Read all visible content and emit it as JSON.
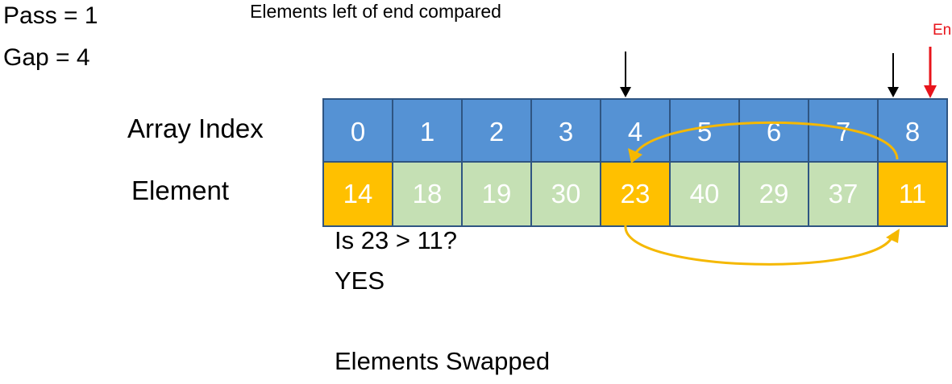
{
  "pass_label": "Pass = 1",
  "gap_label": "Gap = 4",
  "caption": "Elements left of end compared",
  "end_label": "End",
  "row_labels": {
    "index": "Array Index",
    "element": "Element"
  },
  "indices": [
    "0",
    "1",
    "2",
    "3",
    "4",
    "5",
    "6",
    "7",
    "8"
  ],
  "elements": [
    "14",
    "18",
    "19",
    "30",
    "23",
    "40",
    "29",
    "37",
    "11"
  ],
  "highlighted_indices": [
    0,
    4,
    8
  ],
  "compared_indices": [
    4,
    8
  ],
  "question": "Is 23 > 11?",
  "answer": "YES",
  "result": "Elements Swapped",
  "colors": {
    "index_cell": "#5592d4",
    "element_cell": "#c5e0b4",
    "highlight_cell": "#ffc000",
    "cell_border": "#2f5582",
    "swap_arrow": "#f5b800",
    "end_marker": "#e8141b",
    "pointer_arrow": "#000000"
  }
}
